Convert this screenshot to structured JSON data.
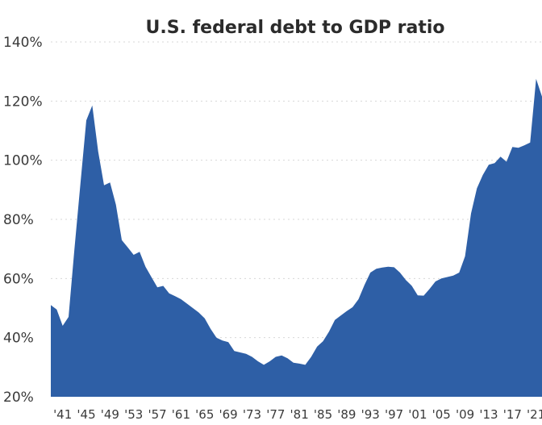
{
  "chart_data": {
    "type": "area",
    "title": "U.S. federal debt to GDP ratio",
    "xlabel": "",
    "ylabel": "",
    "ylim": [
      20,
      140
    ],
    "xlim": [
      1939,
      2022
    ],
    "y_ticks": [
      "20%",
      "40%",
      "60%",
      "80%",
      "100%",
      "120%",
      "140%"
    ],
    "y_tick_values": [
      20,
      40,
      60,
      80,
      100,
      120,
      140
    ],
    "x_ticks": [
      "'41",
      "'45",
      "'49",
      "'53",
      "'57",
      "'61",
      "'65",
      "'69",
      "'73",
      "'77",
      "'81",
      "'85",
      "'89",
      "'93",
      "'97",
      "'01",
      "'05",
      "'09",
      "'13",
      "'17",
      "'21"
    ],
    "x_tick_years": [
      1941,
      1945,
      1949,
      1953,
      1957,
      1961,
      1965,
      1969,
      1973,
      1977,
      1981,
      1985,
      1989,
      1993,
      1997,
      2001,
      2005,
      2009,
      2013,
      2017,
      2021
    ],
    "grid": true,
    "color": "#2e5fa6",
    "series": [
      {
        "name": "",
        "x": [
          1939,
          1940,
          1941,
          1942,
          1943,
          1944,
          1945,
          1946,
          1947,
          1948,
          1949,
          1950,
          1951,
          1952,
          1953,
          1954,
          1955,
          1956,
          1957,
          1958,
          1959,
          1960,
          1961,
          1962,
          1963,
          1964,
          1965,
          1966,
          1967,
          1968,
          1969,
          1970,
          1971,
          1972,
          1973,
          1974,
          1975,
          1976,
          1977,
          1978,
          1979,
          1980,
          1981,
          1982,
          1983,
          1984,
          1985,
          1986,
          1987,
          1988,
          1989,
          1990,
          1991,
          1992,
          1993,
          1994,
          1995,
          1996,
          1997,
          1998,
          1999,
          2000,
          2001,
          2002,
          2003,
          2004,
          2005,
          2006,
          2007,
          2008,
          2009,
          2010,
          2011,
          2012,
          2013,
          2014,
          2015,
          2016,
          2017,
          2018,
          2019,
          2020,
          2021,
          2022
        ],
        "y": [
          51,
          49.5,
          44,
          47,
          70,
          92,
          113.5,
          118.5,
          103,
          91.5,
          92.5,
          85,
          73,
          70.5,
          68,
          69,
          64,
          60.5,
          57,
          57.5,
          55,
          54,
          53,
          51.5,
          50,
          48.5,
          46.5,
          43,
          40,
          39,
          38.5,
          35.5,
          35,
          34.5,
          33.5,
          32,
          30.8,
          32,
          33.5,
          34,
          33,
          31.5,
          31.2,
          30.8,
          33.5,
          37,
          38.8,
          42,
          46,
          47.5,
          49,
          50.3,
          53,
          57.8,
          62,
          63.3,
          63.7,
          64,
          63.8,
          62,
          59.5,
          57.5,
          54.3,
          54.2,
          56.5,
          59,
          60,
          60.5,
          61,
          62,
          67.5,
          82,
          90.5,
          95,
          98.5,
          99,
          101.2,
          99.5,
          104.5,
          104.2,
          105,
          106,
          127.5,
          121.5
        ]
      }
    ]
  }
}
